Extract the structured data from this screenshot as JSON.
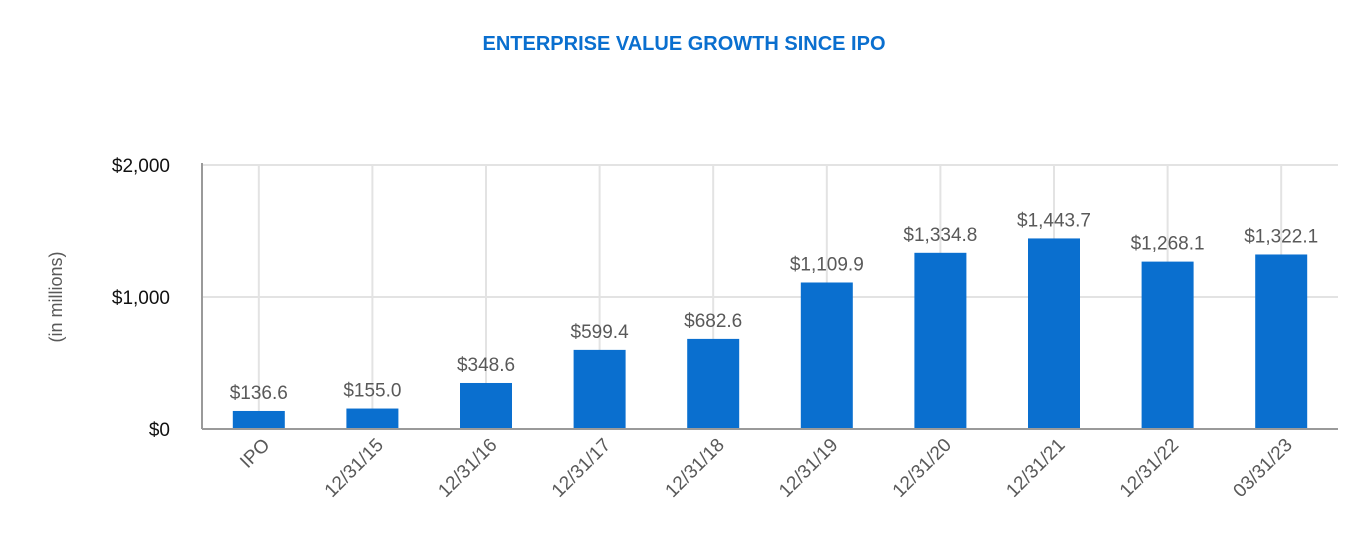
{
  "chart_data": {
    "type": "bar",
    "title": "ENTERPRISE VALUE GROWTH SINCE IPO",
    "xlabel": "",
    "ylabel": "(in millions)",
    "categories": [
      "IPO",
      "12/31/15",
      "12/31/16",
      "12/31/17",
      "12/31/18",
      "12/31/19",
      "12/31/20",
      "12/31/21",
      "12/31/22",
      "03/31/23"
    ],
    "values": [
      136.6,
      155.0,
      348.6,
      599.4,
      682.6,
      1109.9,
      1334.8,
      1443.7,
      1268.1,
      1322.1
    ],
    "data_labels": [
      "$136.6",
      "$155.0",
      "$348.6",
      "$599.4",
      "$682.6",
      "$1,109.9",
      "$1,334.8",
      "$1,443.7",
      "$1,268.1",
      "$1,322.1"
    ],
    "ylim": [
      0,
      2000
    ],
    "yticks": [
      0,
      1000,
      2000
    ],
    "ytick_labels": [
      "$0",
      "$1,000",
      "$2,000"
    ],
    "grid": true,
    "legend": "none",
    "bar_color": "#0a6fcf"
  }
}
